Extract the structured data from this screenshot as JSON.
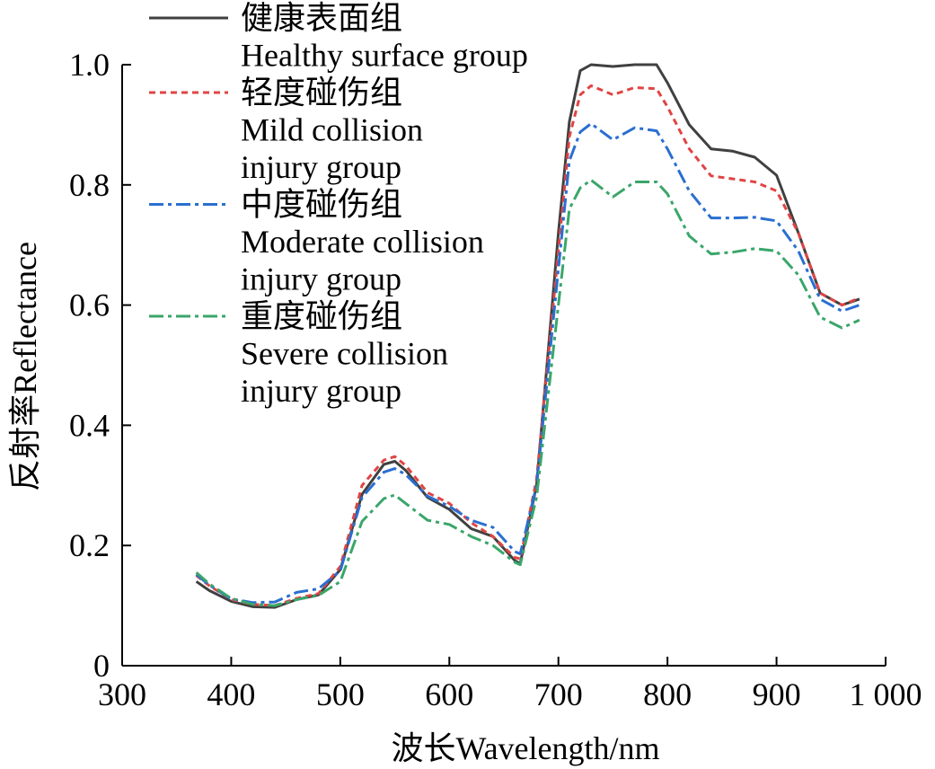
{
  "chart_data": {
    "type": "line",
    "xlabel": "波长Wavelength/nm",
    "ylabel": "反射率Reflectance",
    "xlim": [
      300,
      1000
    ],
    "ylim": [
      0,
      1.0
    ],
    "x_ticks": [
      300,
      400,
      500,
      600,
      700,
      800,
      900,
      1000
    ],
    "x_tick_labels": [
      "300",
      "400",
      "500",
      "600",
      "700",
      "800",
      "900",
      "1 000"
    ],
    "y_ticks": [
      0,
      0.2,
      0.4,
      0.6,
      0.8,
      1.0
    ],
    "y_tick_labels": [
      "0",
      "0.2",
      "0.4",
      "0.6",
      "0.8",
      "1.0"
    ],
    "grid": false,
    "legend_position": "top-left",
    "x": [
      368,
      380,
      400,
      420,
      440,
      460,
      480,
      500,
      520,
      540,
      550,
      560,
      580,
      600,
      620,
      640,
      660,
      665,
      680,
      700,
      710,
      720,
      730,
      750,
      770,
      790,
      800,
      820,
      840,
      860,
      880,
      900,
      920,
      940,
      960,
      976
    ],
    "series": [
      {
        "name_cn": "健康表面组",
        "name_en": "Healthy surface group",
        "color": "#404040",
        "dash": "solid",
        "values": [
          0.14,
          0.125,
          0.107,
          0.098,
          0.097,
          0.11,
          0.118,
          0.16,
          0.285,
          0.335,
          0.34,
          0.325,
          0.28,
          0.26,
          0.228,
          0.215,
          0.175,
          0.17,
          0.3,
          0.72,
          0.905,
          0.99,
          1.0,
          0.997,
          1.0,
          1.0,
          0.97,
          0.9,
          0.86,
          0.856,
          0.846,
          0.816,
          0.72,
          0.62,
          0.6,
          0.61
        ]
      },
      {
        "name_cn": "轻度碰伤组",
        "name_en": "Mild collision injury group",
        "color": "#e04444",
        "dash": "dotted",
        "values": [
          0.15,
          0.133,
          0.11,
          0.102,
          0.1,
          0.112,
          0.12,
          0.165,
          0.3,
          0.342,
          0.348,
          0.333,
          0.288,
          0.27,
          0.238,
          0.215,
          0.18,
          0.178,
          0.31,
          0.69,
          0.88,
          0.95,
          0.965,
          0.95,
          0.962,
          0.96,
          0.93,
          0.86,
          0.815,
          0.81,
          0.805,
          0.79,
          0.72,
          0.62,
          0.6,
          0.612
        ]
      },
      {
        "name_cn": "中度碰伤组",
        "name_en": "Moderate collision injury group",
        "color": "#2a6fd0",
        "dash": "dashdot",
        "values": [
          0.152,
          0.134,
          0.111,
          0.105,
          0.106,
          0.122,
          0.128,
          0.158,
          0.28,
          0.322,
          0.328,
          0.318,
          0.282,
          0.265,
          0.242,
          0.23,
          0.19,
          0.186,
          0.3,
          0.66,
          0.84,
          0.888,
          0.902,
          0.875,
          0.895,
          0.89,
          0.86,
          0.79,
          0.745,
          0.745,
          0.746,
          0.74,
          0.69,
          0.61,
          0.59,
          0.6
        ]
      },
      {
        "name_cn": "重度碰伤组",
        "name_en": "Severe collision injury group",
        "color": "#3aa66a",
        "dash": "dashdot",
        "values": [
          0.155,
          0.136,
          0.112,
          0.102,
          0.1,
          0.11,
          0.117,
          0.14,
          0.24,
          0.278,
          0.284,
          0.27,
          0.242,
          0.235,
          0.215,
          0.2,
          0.172,
          0.168,
          0.28,
          0.6,
          0.76,
          0.795,
          0.808,
          0.78,
          0.805,
          0.805,
          0.785,
          0.715,
          0.685,
          0.688,
          0.694,
          0.69,
          0.65,
          0.58,
          0.562,
          0.575
        ]
      }
    ]
  }
}
